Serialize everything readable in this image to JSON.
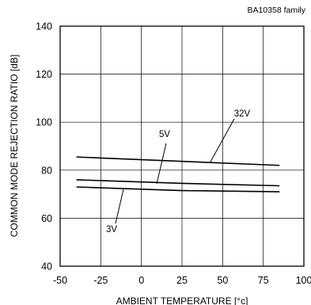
{
  "chart_data": {
    "type": "line",
    "title": "BA10358  family",
    "xlabel": "AMBIENT TEMPERATURE [°c]",
    "ylabel": "COMMON MODE REJECTION RATIO [dB]",
    "xlim": [
      -50,
      100
    ],
    "ylim": [
      40,
      140
    ],
    "x_ticks": [
      -50,
      -25,
      0,
      25,
      50,
      75,
      100
    ],
    "x_tick_labels": [
      "-50",
      "-25",
      "0",
      "25",
      "50",
      "75",
      "100"
    ],
    "y_ticks": [
      40,
      60,
      80,
      100,
      120,
      140
    ],
    "y_tick_labels": [
      "40",
      "60",
      "80",
      "100",
      "120",
      "140"
    ],
    "grid": true,
    "series": [
      {
        "name": "32V",
        "x": [
          -40,
          85
        ],
        "y": [
          85.5,
          82
        ]
      },
      {
        "name": "5V",
        "x": [
          -40,
          25,
          85
        ],
        "y": [
          76,
          74.5,
          73.5
        ]
      },
      {
        "name": "3V",
        "x": [
          -40,
          25,
          85
        ],
        "y": [
          73,
          71.5,
          71
        ]
      }
    ],
    "annotations": [
      {
        "text": "32V",
        "series": "32V"
      },
      {
        "text": "5V",
        "series": "5V"
      },
      {
        "text": "3V",
        "series": "3V"
      }
    ]
  }
}
